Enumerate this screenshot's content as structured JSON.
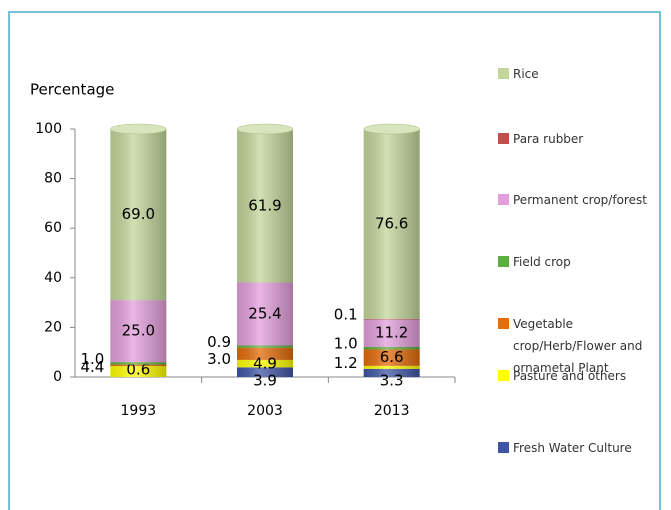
{
  "chart_data": {
    "type": "stacked_bar",
    "y_label": "Percentage",
    "categories": [
      "1993",
      "2003",
      "2013"
    ],
    "ylim": [
      0,
      100
    ],
    "yticks": [
      0,
      20,
      40,
      60,
      80,
      100
    ],
    "series": [
      {
        "name": "Rice",
        "color": "#c3d69b",
        "values": [
          69,
          61.9,
          76.6
        ],
        "value_labels": [
          "69.0",
          "61.9",
          "76.6"
        ]
      },
      {
        "name": "Para rubber",
        "color": "#c0504d",
        "values": [
          null,
          null,
          0.1
        ],
        "value_labels": [
          null,
          null,
          "0.1"
        ]
      },
      {
        "name": "Permanent crop/forest",
        "color": "#e39fdc",
        "values": [
          25,
          25.4,
          11.2
        ],
        "value_labels": [
          "25.0",
          "25.4",
          "11.2"
        ]
      },
      {
        "name": "Field crop",
        "color": "#5cb03f",
        "values": [
          1,
          0.9,
          1
        ],
        "value_labels": [
          "1.0",
          "0.9",
          "1.0"
        ]
      },
      {
        "name": "Vegetable crop/Herb/Flower and ornametal Plant",
        "color": "#e46c0a",
        "values": [
          0.6,
          4.9,
          6.6
        ],
        "value_labels": [
          "0.6",
          "4.9",
          "6.6"
        ]
      },
      {
        "name": "Pasture and others",
        "color": "#ffff00",
        "values": [
          4.4,
          3,
          1.2
        ],
        "value_labels": [
          "4.4",
          "3.0",
          "1.2"
        ]
      },
      {
        "name": "Fresh Water Culture",
        "color": "#3f56a6",
        "values": [
          null,
          3.9,
          3.3
        ],
        "value_labels": [
          null,
          "3.9",
          "3.3"
        ]
      }
    ]
  }
}
